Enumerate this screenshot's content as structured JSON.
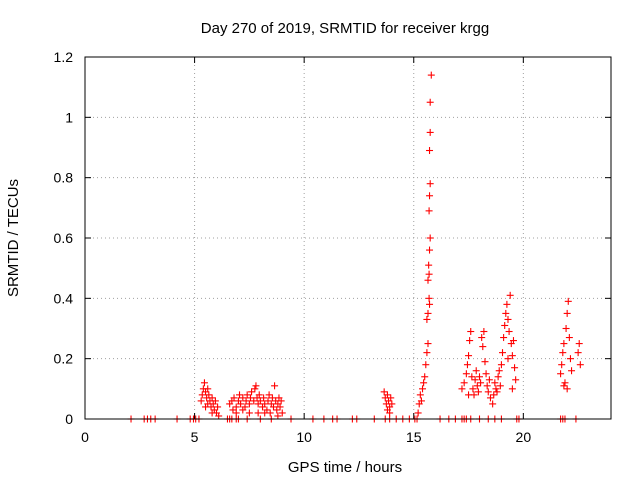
{
  "chart_data": {
    "type": "scatter",
    "title": "Day 270 of 2019, SRMTID for receiver krgg",
    "xlabel": "GPS time / hours",
    "ylabel": "SRMTID / TECUs",
    "xlim": [
      0,
      24
    ],
    "ylim": [
      0,
      1.2
    ],
    "xticks": [
      0,
      5,
      10,
      15,
      20
    ],
    "yticks": [
      0,
      0.2,
      0.4,
      0.6,
      0.8,
      1,
      1.2
    ],
    "xtick_labels": [
      "0",
      "5",
      "10",
      "15",
      "20"
    ],
    "ytick_labels": [
      "0",
      "0.2",
      "0.4",
      "0.6",
      "0.8",
      "1",
      "1.2"
    ],
    "grid": true,
    "marker": "+",
    "color": "#ff0000",
    "series": [
      {
        "name": "SRMTID",
        "points": [
          [
            2.1,
            0
          ],
          [
            2.7,
            0
          ],
          [
            2.85,
            0
          ],
          [
            3.0,
            0
          ],
          [
            3.2,
            0
          ],
          [
            4.2,
            0
          ],
          [
            4.8,
            0
          ],
          [
            4.95,
            0
          ],
          [
            5.05,
            0
          ],
          [
            5.2,
            0
          ],
          [
            5.3,
            0.06
          ],
          [
            5.35,
            0.08
          ],
          [
            5.4,
            0.1
          ],
          [
            5.45,
            0.12
          ],
          [
            5.5,
            0.09
          ],
          [
            5.55,
            0.07
          ],
          [
            5.6,
            0.05
          ],
          [
            5.65,
            0.08
          ],
          [
            5.7,
            0.06
          ],
          [
            5.75,
            0.04
          ],
          [
            5.8,
            0.07
          ],
          [
            5.85,
            0.05
          ],
          [
            5.9,
            0.03
          ],
          [
            5.95,
            0.06
          ],
          [
            6.0,
            0.02
          ],
          [
            6.05,
            0.04
          ],
          [
            6.1,
            0.01
          ],
          [
            5.5,
            0.04
          ],
          [
            5.6,
            0.1
          ],
          [
            5.8,
            0.02
          ],
          [
            6.5,
            0
          ],
          [
            6.6,
            0
          ],
          [
            6.7,
            0
          ],
          [
            6.9,
            0
          ],
          [
            6.6,
            0.05
          ],
          [
            6.7,
            0.06
          ],
          [
            6.75,
            0.03
          ],
          [
            6.8,
            0.07
          ],
          [
            6.9,
            0.04
          ],
          [
            7.0,
            0.06
          ],
          [
            7.05,
            0.08
          ],
          [
            7.1,
            0.05
          ],
          [
            7.2,
            0.07
          ],
          [
            7.3,
            0.04
          ],
          [
            7.35,
            0.06
          ],
          [
            7.4,
            0.08
          ],
          [
            7.5,
            0.05
          ],
          [
            7.55,
            0.07
          ],
          [
            7.6,
            0.09
          ],
          [
            7.7,
            0.06
          ],
          [
            7.75,
            0.1
          ],
          [
            7.8,
            0.11
          ],
          [
            7.85,
            0.07
          ],
          [
            7.9,
            0.05
          ],
          [
            7.95,
            0.08
          ],
          [
            8.0,
            0.06
          ],
          [
            8.1,
            0.04
          ],
          [
            8.15,
            0.07
          ],
          [
            8.2,
            0.05
          ],
          [
            8.3,
            0.03
          ],
          [
            8.35,
            0.06
          ],
          [
            8.4,
            0.08
          ],
          [
            8.5,
            0.05
          ],
          [
            8.55,
            0.07
          ],
          [
            8.6,
            0.04
          ],
          [
            8.65,
            0.11
          ],
          [
            8.7,
            0.06
          ],
          [
            8.75,
            0.03
          ],
          [
            8.8,
            0.05
          ],
          [
            8.85,
            0.07
          ],
          [
            8.9,
            0.04
          ],
          [
            8.95,
            0.06
          ],
          [
            9.0,
            0.02
          ],
          [
            6.9,
            0.02
          ],
          [
            7.2,
            0.03
          ],
          [
            7.5,
            0.02
          ],
          [
            7.9,
            0.02
          ],
          [
            8.2,
            0.02
          ],
          [
            8.45,
            0.02
          ],
          [
            8.8,
            0.01
          ],
          [
            7.0,
            0
          ],
          [
            7.4,
            0
          ],
          [
            8.0,
            0
          ],
          [
            8.5,
            0
          ],
          [
            9.4,
            0
          ],
          [
            10.4,
            0
          ],
          [
            10.9,
            0
          ],
          [
            11.3,
            0
          ],
          [
            11.5,
            0
          ],
          [
            12.2,
            0
          ],
          [
            12.4,
            0
          ],
          [
            13.2,
            0
          ],
          [
            13.7,
            0
          ],
          [
            13.9,
            0
          ],
          [
            13.65,
            0.09
          ],
          [
            13.7,
            0.07
          ],
          [
            13.75,
            0.05
          ],
          [
            13.8,
            0.08
          ],
          [
            13.85,
            0.06
          ],
          [
            13.9,
            0.04
          ],
          [
            13.95,
            0.07
          ],
          [
            14.0,
            0.05
          ],
          [
            13.8,
            0.03
          ],
          [
            13.9,
            0.02
          ],
          [
            14.2,
            0
          ],
          [
            14.5,
            0
          ],
          [
            14.8,
            0
          ],
          [
            15.05,
            0
          ],
          [
            15.15,
            0
          ],
          [
            15.2,
            0.02
          ],
          [
            15.25,
            0.05
          ],
          [
            15.3,
            0.08
          ],
          [
            15.35,
            0.06
          ],
          [
            15.4,
            0.1
          ],
          [
            15.45,
            0.12
          ],
          [
            15.5,
            0.14
          ],
          [
            15.55,
            0.18
          ],
          [
            15.6,
            0.22
          ],
          [
            15.65,
            0.25
          ],
          [
            15.6,
            0.33
          ],
          [
            15.65,
            0.35
          ],
          [
            15.7,
            0.4
          ],
          [
            15.72,
            0.38
          ],
          [
            15.65,
            0.46
          ],
          [
            15.7,
            0.48
          ],
          [
            15.68,
            0.51
          ],
          [
            15.72,
            0.56
          ],
          [
            15.75,
            0.6
          ],
          [
            15.7,
            0.69
          ],
          [
            15.72,
            0.74
          ],
          [
            15.75,
            0.78
          ],
          [
            15.72,
            0.89
          ],
          [
            15.75,
            0.95
          ],
          [
            15.75,
            1.05
          ],
          [
            15.8,
            1.14
          ],
          [
            16.2,
            0
          ],
          [
            16.6,
            0
          ],
          [
            16.9,
            0
          ],
          [
            17.2,
            0
          ],
          [
            17.4,
            0
          ],
          [
            17.2,
            0.1
          ],
          [
            17.3,
            0.12
          ],
          [
            17.4,
            0.15
          ],
          [
            17.45,
            0.18
          ],
          [
            17.5,
            0.21
          ],
          [
            17.55,
            0.26
          ],
          [
            17.6,
            0.29
          ],
          [
            17.5,
            0.08
          ],
          [
            17.65,
            0.14
          ],
          [
            17.7,
            0.1
          ],
          [
            17.75,
            0.08
          ],
          [
            17.8,
            0.13
          ],
          [
            17.85,
            0.16
          ],
          [
            17.9,
            0.11
          ],
          [
            17.95,
            0.09
          ],
          [
            18.0,
            0.14
          ],
          [
            18.05,
            0.12
          ],
          [
            18.1,
            0.27
          ],
          [
            18.15,
            0.24
          ],
          [
            18.2,
            0.29
          ],
          [
            18.25,
            0.19
          ],
          [
            18.3,
            0.15
          ],
          [
            18.35,
            0.11
          ],
          [
            18.4,
            0.09
          ],
          [
            18.45,
            0.13
          ],
          [
            18.5,
            0.07
          ],
          [
            18.6,
            0.05
          ],
          [
            18.65,
            0.08
          ],
          [
            18.7,
            0.12
          ],
          [
            18.75,
            0.1
          ],
          [
            18.8,
            0.09
          ],
          [
            18.85,
            0.14
          ],
          [
            18.9,
            0.16
          ],
          [
            18.95,
            0.11
          ],
          [
            19.0,
            0.18
          ],
          [
            19.05,
            0.22
          ],
          [
            19.1,
            0.27
          ],
          [
            19.15,
            0.31
          ],
          [
            19.2,
            0.35
          ],
          [
            19.25,
            0.38
          ],
          [
            19.3,
            0.33
          ],
          [
            19.35,
            0.29
          ],
          [
            19.4,
            0.41
          ],
          [
            19.45,
            0.25
          ],
          [
            19.5,
            0.21
          ],
          [
            19.55,
            0.26
          ],
          [
            19.6,
            0.17
          ],
          [
            19.65,
            0.13
          ],
          [
            19.5,
            0.1
          ],
          [
            19.3,
            0.2
          ],
          [
            17.3,
            0
          ],
          [
            17.6,
            0
          ],
          [
            18.0,
            0
          ],
          [
            18.4,
            0
          ],
          [
            18.7,
            0
          ],
          [
            19.0,
            0
          ],
          [
            19.7,
            0
          ],
          [
            19.8,
            0
          ],
          [
            21.7,
            0
          ],
          [
            21.8,
            0
          ],
          [
            21.9,
            0
          ],
          [
            22.4,
            0
          ],
          [
            21.7,
            0.15
          ],
          [
            21.75,
            0.18
          ],
          [
            21.8,
            0.22
          ],
          [
            21.85,
            0.25
          ],
          [
            21.9,
            0.12
          ],
          [
            21.95,
            0.3
          ],
          [
            22.0,
            0.35
          ],
          [
            22.05,
            0.39
          ],
          [
            22.1,
            0.27
          ],
          [
            22.15,
            0.2
          ],
          [
            22.2,
            0.16
          ],
          [
            22.0,
            0.1
          ],
          [
            21.85,
            0.11
          ],
          [
            22.5,
            0.22
          ],
          [
            22.55,
            0.25
          ],
          [
            22.6,
            0.18
          ]
        ]
      }
    ]
  }
}
